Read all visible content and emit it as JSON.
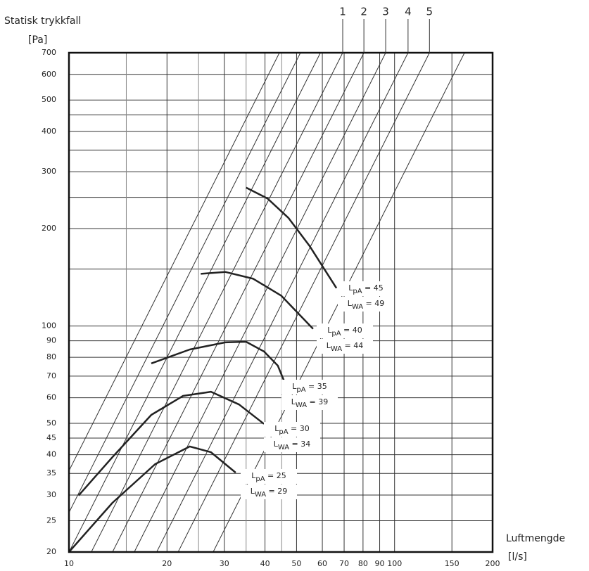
{
  "chart_data": {
    "type": "line",
    "y_label": "Statisk trykkfall",
    "y_unit": "[Pa]",
    "x_label": "Luftmengde",
    "x_unit": "[l/s]",
    "xscale": "log",
    "yscale": "log",
    "xlim": [
      10,
      200
    ],
    "ylim": [
      20,
      700
    ],
    "xticks": [
      10,
      20,
      30,
      40,
      50,
      60,
      70,
      80,
      90,
      100,
      150,
      200
    ],
    "yticks": [
      20,
      25,
      30,
      35,
      40,
      45,
      50,
      60,
      70,
      80,
      90,
      100,
      200,
      300,
      400,
      500,
      600,
      700
    ],
    "x_minor_grid": [
      15,
      25,
      35,
      45
    ],
    "y_minor_grid": [
      150,
      250,
      350,
      450
    ],
    "grid": true,
    "duct_lines": {
      "labels": [
        null,
        null,
        null,
        1,
        2,
        3,
        4,
        5,
        null
      ],
      "q_at_ymax": [
        44.3,
        51.4,
        59.2,
        69.3,
        80.5,
        93.9,
        110,
        128,
        164
      ]
    },
    "series": [
      {
        "labels": [
          "LpA = 45",
          "LWA = 49"
        ],
        "color": "#222222",
        "x": [
          35.0,
          40.7,
          47.2,
          54.8,
          66.3
        ],
        "values": [
          268,
          248,
          216,
          177,
          131
        ]
      },
      {
        "labels": [
          "LpA = 40",
          "LWA = 44"
        ],
        "color": "#222222",
        "x": [
          25.4,
          30.2,
          36.8,
          44.9,
          56.2
        ],
        "values": [
          145,
          147,
          140,
          124,
          98
        ]
      },
      {
        "labels": [
          "LpA = 35",
          "LWA = 39"
        ],
        "color": "#222222",
        "x": [
          17.9,
          23.5,
          30.2,
          35.0,
          39.7,
          43.8,
          46.1
        ],
        "values": [
          76.6,
          84.6,
          89,
          89.4,
          83.4,
          75.4,
          66.5
        ]
      },
      {
        "labels": [
          "LpA = 30",
          "LWA = 34"
        ],
        "color": "#222222",
        "x": [
          10.7,
          13.6,
          17.9,
          22.4,
          27.3,
          33.3,
          39.7
        ],
        "values": [
          29.9,
          39.3,
          53.1,
          60.8,
          62.6,
          57.2,
          49.8
        ]
      },
      {
        "labels": [
          "LpA = 25",
          "LWA = 29"
        ],
        "color": "#222222",
        "x": [
          10,
          13.6,
          18.4,
          23.5,
          27.3,
          32.5
        ],
        "values": [
          20,
          28.4,
          37.4,
          42.4,
          40.7,
          35.2
        ]
      }
    ]
  }
}
